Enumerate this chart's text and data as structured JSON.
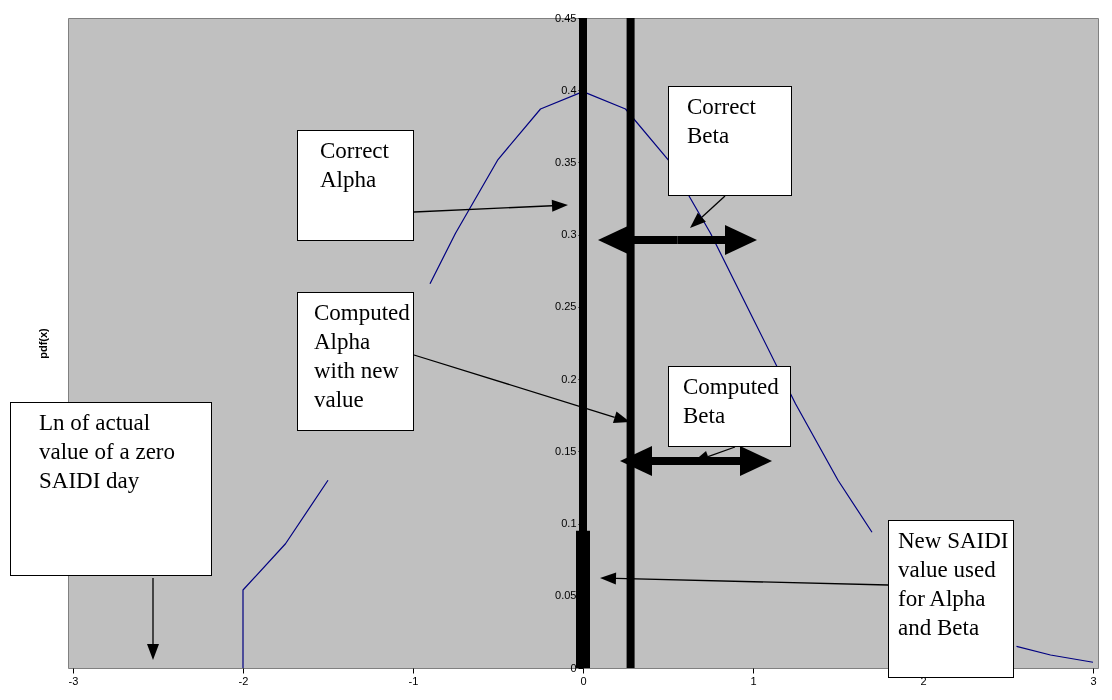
{
  "chart_data": {
    "type": "line",
    "ylabel": "pdf(x)",
    "xlim": [
      -3,
      3
    ],
    "xticks": [
      -3,
      -2,
      -1,
      0,
      1,
      2,
      3
    ],
    "ylim": [
      0,
      0.45
    ],
    "yticks": [
      0,
      0.05,
      0.1,
      0.15,
      0.2,
      0.25,
      0.3,
      0.35,
      0.4,
      0.45
    ],
    "series": [
      {
        "color": "#000080",
        "x": [
          -2,
          -2,
          -1.75,
          -1.5,
          -1.25,
          -0.9,
          -0.75,
          -0.5,
          -0.25,
          0,
          0.25,
          0.5,
          0.75,
          1,
          1.25,
          1.5,
          1.7,
          2,
          2.25,
          2.55,
          2.75,
          3
        ],
        "values": [
          0,
          0.054,
          0.086,
          0.13,
          null,
          0.266,
          0.301,
          0.352,
          0.387,
          0.399,
          0.387,
          0.352,
          0.301,
          0.242,
          0.183,
          0.13,
          0.094,
          null,
          null,
          0.015,
          0.009,
          0.004
        ]
      },
      {
        "type": "bar",
        "color": "#000000",
        "x": [
          0
        ],
        "values": [
          0.095
        ]
      }
    ],
    "ref_lines": [
      {
        "axis": "x",
        "value": 0,
        "color": "#000000"
      },
      {
        "axis": "x",
        "value": 0.28,
        "color": "#000000"
      }
    ],
    "annotations": [
      "Correct Alpha",
      "Correct Beta",
      "Computed Alpha with new value",
      "Computed Beta",
      "New SAIDI value used for Alpha and Beta",
      "Ln of actual value of a zero SAIDI day"
    ]
  }
}
